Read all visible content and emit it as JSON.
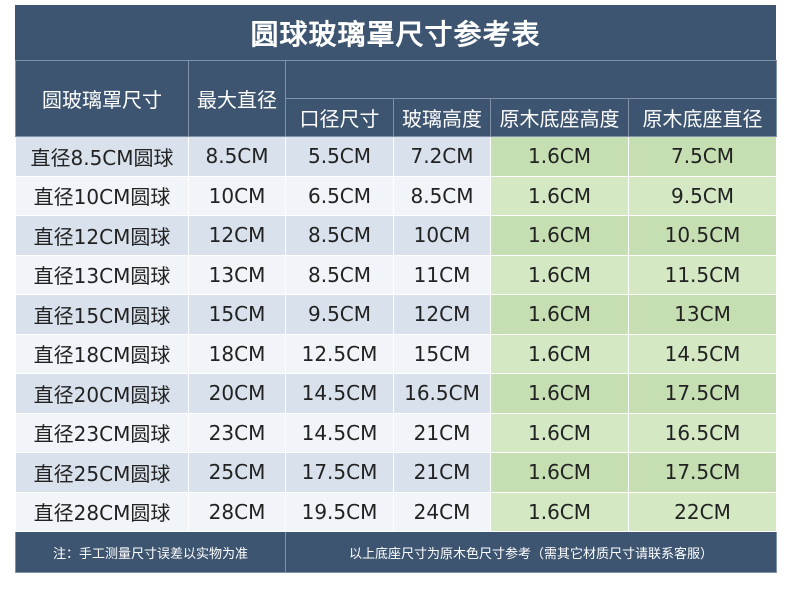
{
  "title": "圆球玻璃罩尺寸参考表",
  "table": {
    "header": [
      "圆玻璃罩尺寸",
      "最大直径",
      "口径尺寸",
      "玻璃高度",
      "原木底座高度",
      "原木底座直径"
    ],
    "rows": [
      [
        "直径8.5CM圆球",
        "8.5CM",
        "5.5CM",
        "7.2CM",
        "1.6CM",
        "7.5CM"
      ],
      [
        "直径10CM圆球",
        "10CM",
        "6.5CM",
        "8.5CM",
        "1.6CM",
        "9.5CM"
      ],
      [
        "直径12CM圆球",
        "12CM",
        "8.5CM",
        "10CM",
        "1.6CM",
        "10.5CM"
      ],
      [
        "直径13CM圆球",
        "13CM",
        "8.5CM",
        "11CM",
        "1.6CM",
        "11.5CM"
      ],
      [
        "直径15CM圆球",
        "15CM",
        "9.5CM",
        "12CM",
        "1.6CM",
        "13CM"
      ],
      [
        "直径18CM圆球",
        "18CM",
        "12.5CM",
        "15CM",
        "1.6CM",
        "14.5CM"
      ],
      [
        "直径20CM圆球",
        "20CM",
        "14.5CM",
        "16.5CM",
        "1.6CM",
        "17.5CM"
      ],
      [
        "直径23CM圆球",
        "23CM",
        "14.5CM",
        "21CM",
        "1.6CM",
        "16.5CM"
      ],
      [
        "直径25CM圆球",
        "25CM",
        "17.5CM",
        "21CM",
        "1.6CM",
        "17.5CM"
      ],
      [
        "直径28CM圆球",
        "28CM",
        "19.5CM",
        "24CM",
        "1.6CM",
        "22CM"
      ]
    ],
    "footer": [
      "注：手工测量尺寸误差以实物为准",
      "以上底座尺寸为原木色尺寸参考（需其它材质尺寸请联系客服）"
    ]
  }
}
